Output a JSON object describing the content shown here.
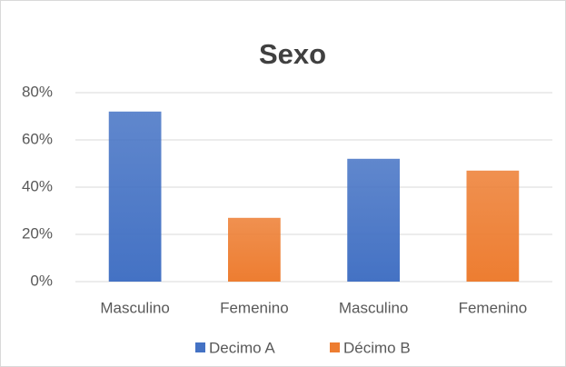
{
  "chart_data": {
    "type": "bar",
    "title": "Sexo",
    "categories": [
      "Masculino",
      "Femenino",
      "Masculino",
      "Femenino"
    ],
    "series": [
      {
        "name": "Decimo A",
        "color": "#4472c4",
        "values": [
          72,
          null,
          52,
          null
        ]
      },
      {
        "name": "Décimo B",
        "color": "#ed7d31",
        "values": [
          null,
          27,
          null,
          47
        ]
      }
    ],
    "ylim": [
      0,
      80
    ],
    "yticks": [
      {
        "value": 0,
        "label": "0%"
      },
      {
        "value": 20,
        "label": "20%"
      },
      {
        "value": 40,
        "label": "40%"
      },
      {
        "value": 60,
        "label": "60%"
      },
      {
        "value": 80,
        "label": "80%"
      }
    ],
    "grid": true,
    "legend": "bottom"
  }
}
